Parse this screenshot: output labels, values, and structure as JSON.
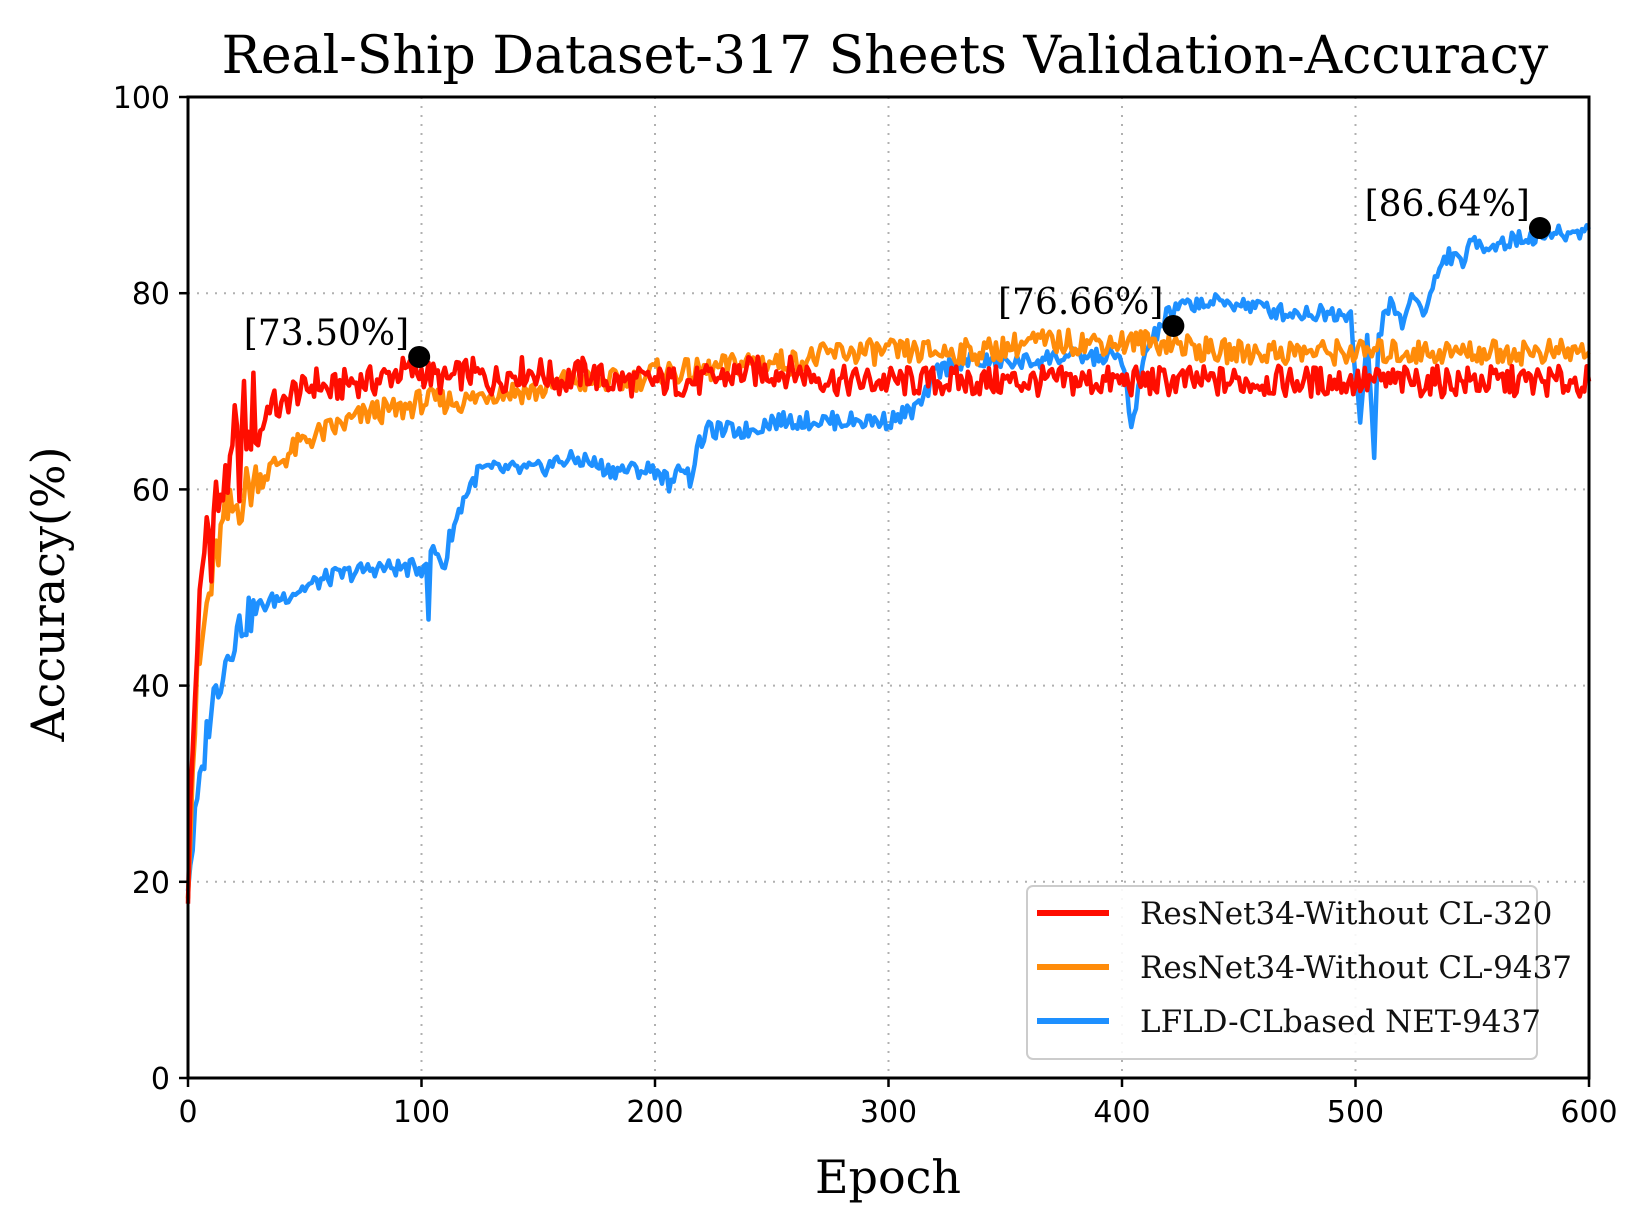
{
  "chart_data": {
    "type": "line",
    "title": "Real-Ship Dataset-317 Sheets Validation-Accuracy",
    "xlabel": "Epoch",
    "ylabel": "Accuracy(%)",
    "xlim": [
      0,
      600
    ],
    "ylim": [
      0,
      100
    ],
    "xticks": [
      0,
      100,
      200,
      300,
      400,
      500,
      600
    ],
    "yticks": [
      0,
      20,
      40,
      60,
      80,
      100
    ],
    "grid": true,
    "legend_position": "lower-right",
    "series": [
      {
        "name": "ResNet34-Without CL-320",
        "color": "#ff0d00",
        "points": [
          [
            0,
            20
          ],
          [
            2,
            33
          ],
          [
            4,
            45
          ],
          [
            6,
            50
          ],
          [
            8,
            57
          ],
          [
            10,
            54
          ],
          [
            12,
            60
          ],
          [
            14,
            57
          ],
          [
            16,
            63
          ],
          [
            18,
            60
          ],
          [
            20,
            66
          ],
          [
            22,
            62
          ],
          [
            24,
            68
          ],
          [
            26,
            64
          ],
          [
            28,
            69
          ],
          [
            30,
            65
          ],
          [
            35,
            69
          ],
          [
            40,
            68
          ],
          [
            45,
            70
          ],
          [
            50,
            70
          ],
          [
            55,
            71
          ],
          [
            60,
            70
          ],
          [
            70,
            71
          ],
          [
            80,
            71
          ],
          [
            90,
            72
          ],
          [
            100,
            72
          ],
          [
            110,
            71
          ],
          [
            120,
            72
          ],
          [
            130,
            71
          ],
          [
            140,
            72
          ],
          [
            150,
            72
          ],
          [
            160,
            71
          ],
          [
            170,
            72
          ],
          [
            180,
            71
          ],
          [
            190,
            71
          ],
          [
            200,
            71
          ],
          [
            220,
            71
          ],
          [
            240,
            72
          ],
          [
            260,
            72
          ],
          [
            280,
            71
          ],
          [
            300,
            71
          ],
          [
            320,
            71
          ],
          [
            340,
            71
          ],
          [
            360,
            71
          ],
          [
            380,
            71
          ],
          [
            400,
            71
          ],
          [
            420,
            71
          ],
          [
            440,
            71
          ],
          [
            460,
            71
          ],
          [
            480,
            71
          ],
          [
            500,
            71
          ],
          [
            520,
            71
          ],
          [
            540,
            71
          ],
          [
            560,
            71
          ],
          [
            580,
            71
          ],
          [
            600,
            71
          ]
        ]
      },
      {
        "name": "ResNet34-Without CL-9437",
        "color": "#ff8c0a",
        "points": [
          [
            0,
            21
          ],
          [
            2,
            32
          ],
          [
            4,
            40
          ],
          [
            6,
            44
          ],
          [
            8,
            48
          ],
          [
            10,
            50
          ],
          [
            12,
            53
          ],
          [
            14,
            55
          ],
          [
            16,
            57
          ],
          [
            20,
            58
          ],
          [
            25,
            60
          ],
          [
            30,
            61
          ],
          [
            35,
            62
          ],
          [
            40,
            63
          ],
          [
            45,
            64
          ],
          [
            50,
            65
          ],
          [
            60,
            66
          ],
          [
            70,
            67
          ],
          [
            80,
            68
          ],
          [
            90,
            68
          ],
          [
            100,
            69
          ],
          [
            110,
            69
          ],
          [
            120,
            69
          ],
          [
            130,
            70
          ],
          [
            140,
            70
          ],
          [
            150,
            70
          ],
          [
            160,
            71
          ],
          [
            170,
            71
          ],
          [
            180,
            71
          ],
          [
            190,
            71
          ],
          [
            200,
            72
          ],
          [
            220,
            72
          ],
          [
            240,
            73
          ],
          [
            260,
            73
          ],
          [
            280,
            74
          ],
          [
            300,
            74
          ],
          [
            320,
            74
          ],
          [
            340,
            74
          ],
          [
            360,
            75
          ],
          [
            380,
            75
          ],
          [
            400,
            75
          ],
          [
            420,
            75
          ],
          [
            440,
            74
          ],
          [
            460,
            74
          ],
          [
            480,
            74
          ],
          [
            500,
            74
          ],
          [
            520,
            74
          ],
          [
            540,
            74
          ],
          [
            560,
            74
          ],
          [
            580,
            74
          ],
          [
            600,
            74
          ]
        ]
      },
      {
        "name": "LFLD-CLbased NET-9437",
        "color": "#1e90ff",
        "points": [
          [
            0,
            20
          ],
          [
            2,
            24
          ],
          [
            4,
            28
          ],
          [
            6,
            31
          ],
          [
            8,
            35
          ],
          [
            10,
            38
          ],
          [
            14,
            41
          ],
          [
            18,
            44
          ],
          [
            22,
            46
          ],
          [
            26,
            47
          ],
          [
            30,
            48
          ],
          [
            40,
            49
          ],
          [
            50,
            50
          ],
          [
            60,
            51
          ],
          [
            70,
            51.5
          ],
          [
            80,
            52
          ],
          [
            90,
            52
          ],
          [
            100,
            52
          ],
          [
            102,
            53
          ],
          [
            103,
            46
          ],
          [
            104,
            54
          ],
          [
            108,
            53
          ],
          [
            110,
            52
          ],
          [
            112,
            55
          ],
          [
            115,
            57
          ],
          [
            118,
            59
          ],
          [
            120,
            60
          ],
          [
            125,
            62
          ],
          [
            130,
            62
          ],
          [
            140,
            62
          ],
          [
            150,
            62
          ],
          [
            160,
            63
          ],
          [
            170,
            63
          ],
          [
            180,
            62
          ],
          [
            190,
            62
          ],
          [
            200,
            62
          ],
          [
            205,
            61
          ],
          [
            208,
            60
          ],
          [
            210,
            63
          ],
          [
            213,
            62
          ],
          [
            215,
            61
          ],
          [
            218,
            64
          ],
          [
            222,
            66
          ],
          [
            230,
            66
          ],
          [
            240,
            66
          ],
          [
            250,
            67
          ],
          [
            260,
            67
          ],
          [
            270,
            67
          ],
          [
            280,
            67
          ],
          [
            290,
            67
          ],
          [
            300,
            67
          ],
          [
            310,
            68
          ],
          [
            315,
            69
          ],
          [
            320,
            72
          ],
          [
            330,
            73
          ],
          [
            340,
            73
          ],
          [
            350,
            73
          ],
          [
            360,
            73
          ],
          [
            370,
            73.5
          ],
          [
            380,
            73.5
          ],
          [
            390,
            73.5
          ],
          [
            400,
            73.5
          ],
          [
            402,
            70
          ],
          [
            404,
            66
          ],
          [
            406,
            68
          ],
          [
            408,
            72
          ],
          [
            410,
            74
          ],
          [
            415,
            76
          ],
          [
            420,
            78
          ],
          [
            430,
            79
          ],
          [
            440,
            79
          ],
          [
            450,
            79
          ],
          [
            460,
            78.5
          ],
          [
            470,
            78
          ],
          [
            480,
            78
          ],
          [
            490,
            78
          ],
          [
            498,
            78
          ],
          [
            500,
            72
          ],
          [
            502,
            67
          ],
          [
            505,
            75
          ],
          [
            508,
            64
          ],
          [
            510,
            76
          ],
          [
            515,
            79
          ],
          [
            520,
            77
          ],
          [
            525,
            80
          ],
          [
            530,
            78
          ],
          [
            535,
            82
          ],
          [
            540,
            84
          ],
          [
            545,
            83
          ],
          [
            550,
            85
          ],
          [
            560,
            85
          ],
          [
            570,
            85.5
          ],
          [
            580,
            86
          ],
          [
            590,
            86
          ],
          [
            600,
            86.5
          ]
        ]
      }
    ],
    "annotations": [
      {
        "x": 99,
        "y": 73.5,
        "text": "[73.50%]"
      },
      {
        "x": 422,
        "y": 76.66,
        "text": "[76.66%]"
      },
      {
        "x": 579,
        "y": 86.64,
        "text": "[86.64%]"
      }
    ]
  }
}
